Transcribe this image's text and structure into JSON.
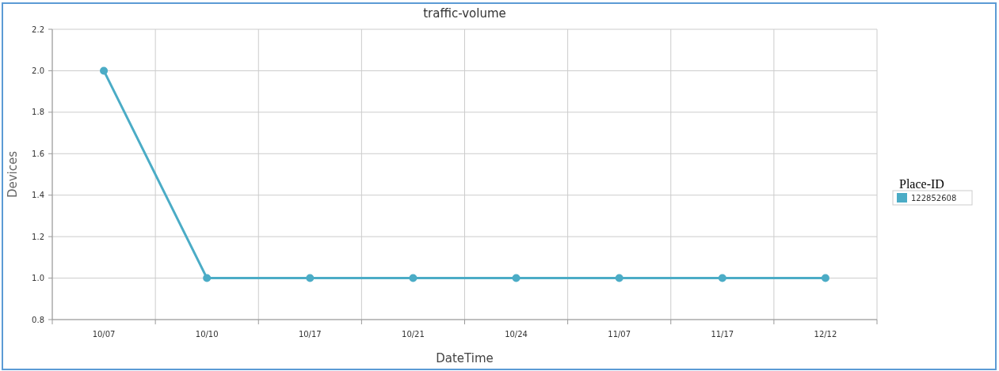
{
  "chart_data": {
    "type": "line",
    "title": "traffic-volume",
    "xlabel": "DateTime",
    "ylabel": "Devices",
    "legend_title": "Place-ID",
    "categories": [
      "10/07",
      "10/10",
      "10/17",
      "10/21",
      "10/24",
      "11/07",
      "11/17",
      "12/12"
    ],
    "series": [
      {
        "name": "122852608",
        "color": "#4bacc6",
        "values": [
          2,
          1,
          1,
          1,
          1,
          1,
          1,
          1
        ]
      }
    ],
    "ylim": [
      0.8,
      2.2
    ],
    "yticks": [
      {
        "value": 0.8,
        "label": "0.8"
      },
      {
        "value": 1,
        "label": "1.0"
      },
      {
        "value": 1.2,
        "label": "1.2"
      },
      {
        "value": 1.4,
        "label": "1.4"
      },
      {
        "value": 1.6,
        "label": "1.6"
      },
      {
        "value": 1.8,
        "label": "1.8"
      },
      {
        "value": 2,
        "label": "2.0"
      },
      {
        "value": 2.2,
        "label": "2.2"
      }
    ],
    "grid": true,
    "legend": "right",
    "marker": "circle",
    "line_style": "solid"
  }
}
